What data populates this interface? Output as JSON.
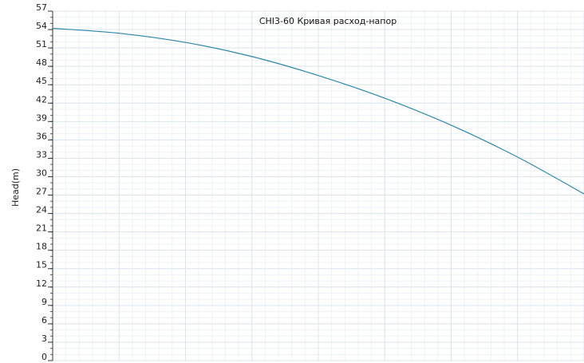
{
  "chart_data": {
    "type": "line",
    "title": "CHI3-60 Кривая расход-напор",
    "ylabel": "Head(m)",
    "xlabel": "",
    "ylim": [
      0,
      57
    ],
    "yticks": [
      0,
      3,
      6,
      9,
      12,
      15,
      18,
      21,
      24,
      27,
      30,
      33,
      36,
      39,
      42,
      45,
      48,
      51,
      54,
      57
    ],
    "xlim": [
      0,
      8
    ],
    "grid": true,
    "series": [
      {
        "color": "#2e86a8",
        "x": [
          0,
          1,
          2,
          3,
          4,
          5,
          6,
          7,
          8
        ],
        "y": [
          54.2,
          53.4,
          51.9,
          49.6,
          46.5,
          42.8,
          38.4,
          33.2,
          27.2
        ]
      }
    ]
  }
}
